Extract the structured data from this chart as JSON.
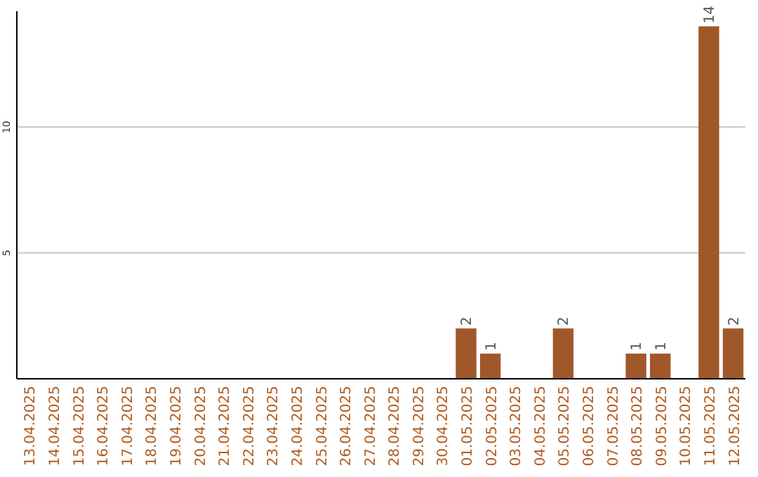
{
  "chart_data": {
    "type": "bar",
    "categories": [
      "13.04.2025",
      "14.04.2025",
      "15.04.2025",
      "16.04.2025",
      "17.04.2025",
      "18.04.2025",
      "19.04.2025",
      "20.04.2025",
      "21.04.2025",
      "22.04.2025",
      "23.04.2025",
      "24.04.2025",
      "25.04.2025",
      "26.04.2025",
      "27.04.2025",
      "28.04.2025",
      "29.04.2025",
      "30.04.2025",
      "01.05.2025",
      "02.05.2025",
      "03.05.2025",
      "04.05.2025",
      "05.05.2025",
      "06.05.2025",
      "07.05.2025",
      "08.05.2025",
      "09.05.2025",
      "10.05.2025",
      "11.05.2025",
      "12.05.2025"
    ],
    "values": [
      0,
      0,
      0,
      0,
      0,
      0,
      0,
      0,
      0,
      0,
      0,
      0,
      0,
      0,
      0,
      0,
      0,
      0,
      2,
      1,
      0,
      0,
      2,
      0,
      0,
      1,
      1,
      0,
      14,
      2
    ],
    "value_labels": [
      null,
      null,
      null,
      null,
      null,
      null,
      null,
      null,
      null,
      null,
      null,
      null,
      null,
      null,
      null,
      null,
      null,
      null,
      "2",
      "1",
      null,
      null,
      "2",
      null,
      null,
      "1",
      "1",
      null,
      "14",
      "2"
    ],
    "color": "#a0582a",
    "ylim": [
      0,
      14.6
    ],
    "yticks": [
      5,
      10
    ],
    "grid": "y"
  }
}
